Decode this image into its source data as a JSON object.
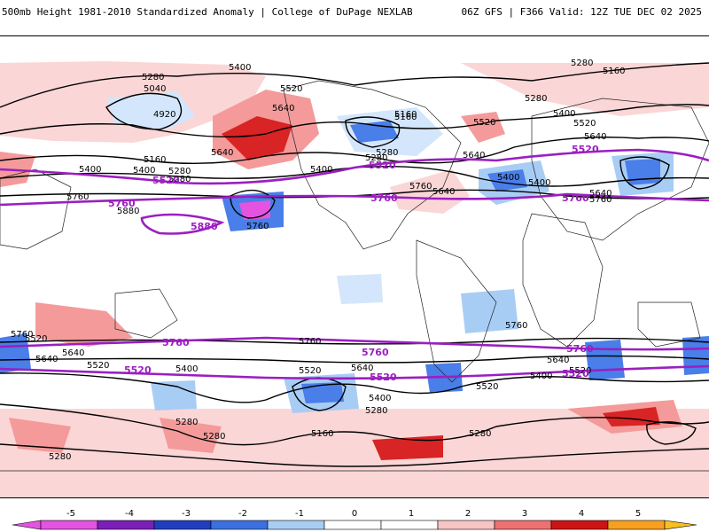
{
  "header": {
    "title": "500mb Height 1981-2010 Standardized Anomaly | College of DuPage NEXLAB",
    "run_info": "06Z GFS | F366 Valid: 12Z TUE DEC 02 2025"
  },
  "map": {
    "contour_labels": {
      "l5400a": "5400",
      "l5280a": "5280",
      "l5040": "5040",
      "l4920": "4920",
      "l5520a": "5520",
      "l5640a": "5640",
      "l5160a": "5160",
      "l5400b": "5400",
      "l5280b": "5280",
      "l5640b": "5640",
      "l5400c": "5400",
      "l5280c": "5280",
      "l5520b": "5520",
      "l5160b": "5160",
      "l5280d": "5280",
      "l5160c": "5160",
      "l5400d": "5400",
      "l5520c": "5520",
      "l5640c": "5640",
      "l5280e": "5280",
      "l5400e": "5400",
      "l5640d": "5640",
      "l5760a": "5760",
      "l5880": "5880",
      "l5760b": "5760",
      "l5760c": "5760",
      "l5400f": "5400",
      "l5760d": "5760",
      "l5640e": "5640",
      "l5520d": "5520",
      "l5400g": "5400",
      "l5520e": "5520",
      "l5640f": "5640",
      "l5520f": "5520",
      "l5400h": "5400",
      "l5280f": "5280",
      "l5160d": "5160",
      "l5280g": "5280",
      "l5280h": "5280",
      "l5760e": "5760",
      "l5640g": "5640",
      "l5520g": "5520",
      "l5400i": "5400",
      "l5280i": "5280",
      "l5760f": "5760",
      "l5640h": "5640",
      "l5280j": "5280",
      "l5280k": "5280",
      "l5640i": "5640",
      "l5760g": "5760",
      "l5520h": "5520",
      "l5400j": "5400",
      "l5640j": "5640",
      "l5280l": "5280",
      "l5160e": "5160"
    },
    "purple_labels": {
      "p5520a": "5520",
      "p5520b": "5520",
      "p5520c": "5520",
      "p5760a": "5760",
      "p5760b": "5760",
      "p5880": "5880",
      "p5760c": "5760",
      "p5760d": "5760",
      "p5760e": "5760",
      "p5760f": "5760",
      "p5520d": "5520",
      "p5520e": "5520",
      "p5520f": "5520"
    }
  },
  "colorbar": {
    "labels": [
      "-5",
      "-4",
      "-3",
      "-2",
      "-1",
      "0",
      "1",
      "2",
      "3",
      "4",
      "5"
    ],
    "colors": [
      "#e454e0",
      "#7a1fb8",
      "#1f3fbf",
      "#3c6fe0",
      "#a8cdf5",
      "#ffffff",
      "#ffffff",
      "#f8c4c4",
      "#ef7070",
      "#cc1414",
      "#f7a020"
    ]
  }
}
